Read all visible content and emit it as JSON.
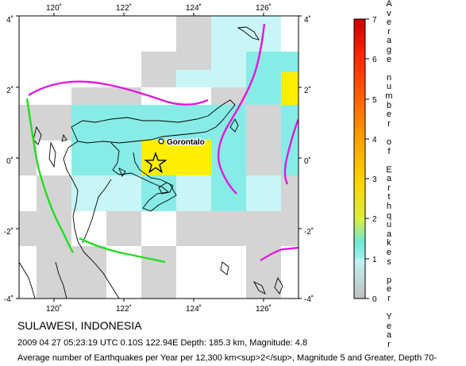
{
  "map": {
    "lon_ticks": [
      "120˚",
      "122˚",
      "124˚",
      "126˚"
    ],
    "lat_ticks_left": [
      "4˚",
      "2˚",
      "0˚",
      "-2˚",
      "-4˚"
    ],
    "lat_ticks_right": [
      "4˚",
      "2˚",
      "0˚",
      "-2˚",
      "-4˚"
    ],
    "city_label": "Gorontalo",
    "epicenter_marker": "star-icon",
    "fault_color": "#e018e0",
    "trench_color": "#22dd22",
    "coast_color": "#000000"
  },
  "colorbar": {
    "title": "Average number of Earthquakes per Year",
    "ticks": [
      "0",
      "1",
      "2",
      "3",
      "4",
      "5",
      "6",
      "7"
    ],
    "colors": [
      "#d0d0d0",
      "#c8f8f8",
      "#70e8e0",
      "#ffee00",
      "#ffbb00",
      "#ff7700",
      "#ff2200",
      "#cc0000",
      "#aa0000"
    ]
  },
  "caption": {
    "title": "SULAWESI, INDONESIA",
    "event": "2009 04 27 05:23:19 UTC 0.10S 122.94E Depth: 185.3 km, Magnitude: 4.8",
    "note": "Average number of Earthquakes per Year per 12,300 km<sup>2</sup>, Magnitude 5 and Greater, Depth 70-"
  }
}
